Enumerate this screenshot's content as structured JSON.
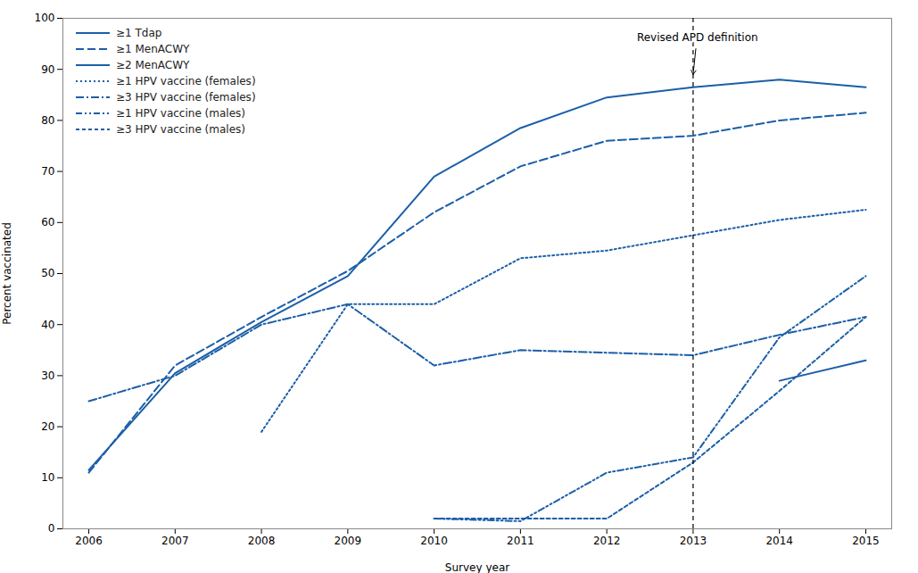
{
  "chart_data": {
    "type": "line",
    "xlabel": "Survey year",
    "ylabel": "Percent vaccinated",
    "color": "#1B5FA8",
    "x": [
      2006,
      2007,
      2008,
      2009,
      2010,
      2011,
      2012,
      2013,
      2014,
      2015
    ],
    "series": [
      {
        "name": "≥1 Tdap",
        "line_style": "solid",
        "values": [
          11.5,
          30.5,
          40.5,
          49.5,
          69.0,
          78.5,
          84.5,
          86.5,
          88.0,
          86.5
        ]
      },
      {
        "name": "≥1 MenACWY",
        "line_style": "dashed",
        "values": [
          11.0,
          32.0,
          41.5,
          50.5,
          62.0,
          71.0,
          76.0,
          77.0,
          80.0,
          81.5
        ]
      },
      {
        "name": "≥2 MenACWY",
        "line_style": "solid",
        "values": [
          null,
          null,
          null,
          null,
          null,
          null,
          null,
          null,
          29.0,
          33.0
        ]
      },
      {
        "name": "≥1 HPV vaccine (females)",
        "line_style": "dotted",
        "values": [
          null,
          null,
          19.0,
          44.0,
          44.0,
          53.0,
          54.5,
          57.5,
          60.5,
          62.5
        ]
      },
      {
        "name": "≥3 HPV vaccine (females)",
        "line_style": "dashdot",
        "values": [
          25.0,
          30.0,
          40.0,
          44.0,
          32.0,
          35.0,
          34.5,
          34.0,
          38.0,
          41.5
        ]
      },
      {
        "name": "≥1 HPV vaccine (males)",
        "line_style": "dashdotdot",
        "values": [
          null,
          null,
          null,
          null,
          2.0,
          1.5,
          11.0,
          14.0,
          37.5,
          49.5
        ]
      },
      {
        "name": "≥3 HPV vaccine (males)",
        "line_style": "shortdash",
        "values": [
          null,
          null,
          null,
          null,
          2.0,
          2.0,
          2.0,
          13.0,
          27.0,
          41.5
        ]
      }
    ],
    "vline": 2013,
    "annotations": [
      {
        "text": "Revised APD definition",
        "x": 2013.05,
        "y": 97,
        "xy": [
          2013,
          89
        ]
      }
    ],
    "xlim": [
      2005.7,
      2015.3
    ],
    "xticks": [
      2006,
      2007,
      2008,
      2009,
      2010,
      2011,
      2012,
      2013,
      2014,
      2015
    ],
    "ylim": [
      0,
      100
    ],
    "yticks": [
      0,
      10,
      20,
      30,
      40,
      50,
      60,
      70,
      80,
      90,
      100
    ],
    "grid": false,
    "legend": "upper left"
  }
}
